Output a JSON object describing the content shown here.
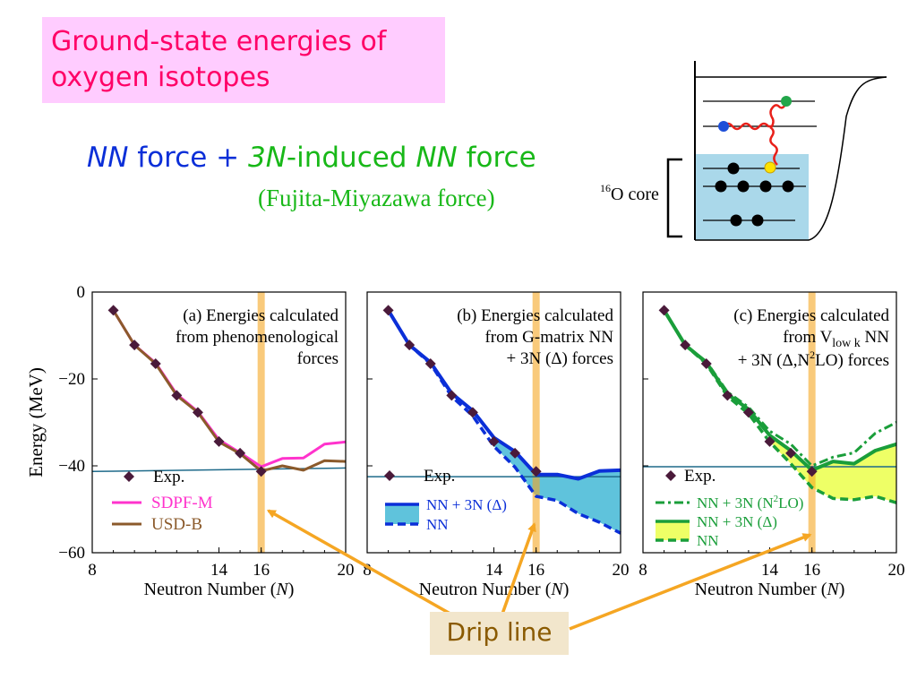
{
  "title": "Ground-state energies of oxygen isotopes",
  "subtitle": {
    "part1": "NN",
    "part2": " force + ",
    "part3": "3N",
    "part4": "-induced ",
    "part5": "NN",
    "part6": " force"
  },
  "fujita_label": "(Fujita-Miyazawa force)",
  "diagram": {
    "core_label_sup": "16",
    "core_label": "O core"
  },
  "drip_label": "Drip line",
  "colors": {
    "pink": "#ff33cc",
    "brown": "#8b5a2b",
    "blue": "#0b2fd8",
    "blue_fill": "#5fc3dc",
    "green": "#1a9e3a",
    "yellow_fill": "#eeff66",
    "orange": "#f5a623",
    "exp_line": "#1e6a8a",
    "marker": "#4a1a3a"
  },
  "chart_data": {
    "type": "line",
    "ylabel": "Energy (MeV)",
    "ylim": [
      -60,
      0
    ],
    "yticks": [
      0,
      -20,
      -40,
      -60
    ],
    "xlim": [
      8,
      20
    ],
    "xticks": [
      8,
      14,
      16,
      20
    ],
    "xlabel_text": "Neutron Number (",
    "xlabel_var": "N",
    "xlabel_end": ")",
    "drip_line_x": 16,
    "exp": {
      "x": [
        9,
        10,
        11,
        12,
        13,
        14,
        15,
        16
      ],
      "y": [
        -4.2,
        -12.2,
        -16.5,
        -23.8,
        -27.7,
        -34.4,
        -37.1,
        -41.3
      ]
    },
    "panels": [
      {
        "id": "a",
        "annotation": [
          "(a)  Energies calculated",
          "from phenomenological",
          "forces"
        ],
        "exp_line_y": [
          -41.3,
          -40.5
        ],
        "legend": [
          {
            "label": "Exp.",
            "style": "marker"
          },
          {
            "label": "SDPF-M",
            "style": "pink"
          },
          {
            "label": "USD-B",
            "style": "brown"
          }
        ],
        "series": [
          {
            "name": "SDPF-M",
            "x": [
              9,
              10,
              11,
              12,
              13,
              14,
              15,
              16,
              17,
              18,
              19,
              20
            ],
            "y": [
              -4.2,
              -12.2,
              -16.3,
              -23.5,
              -27.5,
              -34.0,
              -37.0,
              -40.2,
              -38.3,
              -38.2,
              -35.0,
              -34.5
            ]
          },
          {
            "name": "USD-B",
            "x": [
              9,
              10,
              11,
              12,
              13,
              14,
              15,
              16,
              17,
              18,
              19,
              20
            ],
            "y": [
              -4.2,
              -12.2,
              -16.5,
              -23.8,
              -27.7,
              -34.5,
              -37.2,
              -41.2,
              -40.0,
              -41.0,
              -38.8,
              -39.0
            ]
          }
        ]
      },
      {
        "id": "b",
        "annotation": [
          "(b) Energies calculated",
          "from G-matrix NN",
          "+ 3N (Δ) forces"
        ],
        "exp_line_y": [
          -42.5,
          -42.5
        ],
        "legend": [
          {
            "label": "Exp.",
            "style": "marker"
          },
          {
            "label": "NN + 3N (Δ)",
            "style": "blue-solid"
          },
          {
            "label": "NN",
            "style": "blue-dash"
          }
        ],
        "series": [
          {
            "name": "NN + 3N (Δ)",
            "x": [
              9,
              10,
              11,
              12,
              13,
              14,
              15,
              16,
              17,
              18,
              19,
              20
            ],
            "y": [
              -4.2,
              -12.2,
              -16.2,
              -23.3,
              -27.3,
              -33.5,
              -36.7,
              -42.0,
              -42.0,
              -43.0,
              -41.2,
              -41.0
            ]
          },
          {
            "name": "NN",
            "x": [
              9,
              10,
              11,
              12,
              13,
              14,
              15,
              16,
              17,
              18,
              19,
              20
            ],
            "y": [
              -4.2,
              -12.2,
              -16.5,
              -24.0,
              -28.5,
              -35.5,
              -40.3,
              -47.0,
              -48.0,
              -51.0,
              -53.0,
              -55.5
            ]
          }
        ]
      },
      {
        "id": "c",
        "annotation": [
          "(c) Energies calculated",
          "from  V",
          "low k",
          " NN",
          "+ 3N (Δ,N",
          "2",
          "LO) forces"
        ],
        "exp_line_y": [
          -40.2,
          -40.2
        ],
        "legend": [
          {
            "label": "Exp.",
            "style": "marker"
          },
          {
            "label": "NN + 3N (N",
            "sup": "2",
            "label2": "LO)",
            "style": "green-dashdot"
          },
          {
            "label": "NN + 3N (Δ)",
            "style": "green-solid"
          },
          {
            "label": "NN",
            "style": "green-dash"
          }
        ],
        "series": [
          {
            "name": "NN + 3N (N2LO)",
            "x": [
              9,
              10,
              11,
              12,
              13,
              14,
              15,
              16,
              17,
              18,
              19,
              20
            ],
            "y": [
              -4.2,
              -12.2,
              -16.0,
              -23.0,
              -26.5,
              -32.0,
              -35.0,
              -40.0,
              -38.0,
              -37.0,
              -32.5,
              -30.0
            ]
          },
          {
            "name": "NN + 3N (Δ)",
            "x": [
              9,
              10,
              11,
              12,
              13,
              14,
              15,
              16,
              17,
              18,
              19,
              20
            ],
            "y": [
              -4.2,
              -12.2,
              -16.2,
              -23.5,
              -27.0,
              -33.0,
              -36.5,
              -41.0,
              -39.0,
              -39.5,
              -36.5,
              -35.0
            ]
          },
          {
            "name": "NN",
            "x": [
              9,
              10,
              11,
              12,
              13,
              14,
              15,
              16,
              17,
              18,
              19,
              20
            ],
            "y": [
              -4.2,
              -12.2,
              -16.5,
              -24.0,
              -28.0,
              -34.5,
              -39.5,
              -45.0,
              -47.5,
              -47.8,
              -47.0,
              -48.5
            ]
          }
        ]
      }
    ]
  }
}
